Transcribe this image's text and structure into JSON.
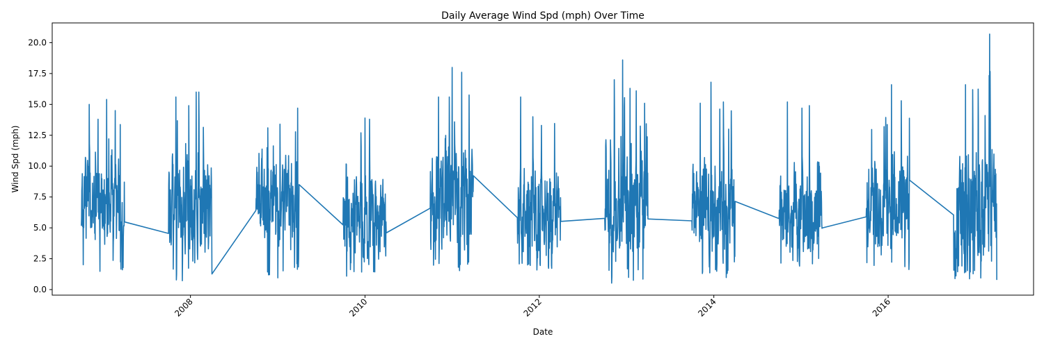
{
  "chart_data": {
    "type": "line",
    "title": "Daily Average Wind Spd (mph) Over Time",
    "xlabel": "Date",
    "ylabel": "Wind Spd (mph)",
    "xlim": [
      "2006-06-01",
      "2017-09-01"
    ],
    "ylim": [
      -0.45,
      21.6
    ],
    "x_ticks": [
      "2008",
      "2010",
      "2012",
      "2014",
      "2016"
    ],
    "y_ticks": [
      "0.0",
      "2.5",
      "5.0",
      "7.5",
      "10.0",
      "12.5",
      "15.0",
      "17.5",
      "20.0"
    ],
    "grid": false,
    "legend": "none",
    "colors": {
      "series": "#1f77b4",
      "axes": "#000000",
      "background": "#ffffff"
    },
    "series": [
      {
        "seasons": [
          {
            "start": "2006-10-01",
            "end": "2007-03-31",
            "min": 1.2,
            "max": 15.4,
            "mean": 7.0,
            "seed": 1,
            "peaks": [
              [
                "2006-11-03",
                15.0
              ],
              [
                "2007-01-15",
                15.4
              ],
              [
                "2007-02-20",
                14.5
              ],
              [
                "2006-12-10",
                13.8
              ]
            ]
          },
          {
            "start": "2007-10-01",
            "end": "2008-03-31",
            "min": 0.6,
            "max": 16.0,
            "mean": 6.5,
            "seed": 2,
            "peaks": [
              [
                "2007-11-01",
                15.6
              ],
              [
                "2008-01-25",
                16.0
              ],
              [
                "2008-02-05",
                16.0
              ],
              [
                "2007-12-25",
                14.9
              ]
            ]
          },
          {
            "start": "2008-10-01",
            "end": "2009-03-31",
            "min": 0.9,
            "max": 14.7,
            "mean": 6.8,
            "seed": 3,
            "peaks": [
              [
                "2008-11-20",
                13.1
              ],
              [
                "2009-01-10",
                13.4
              ],
              [
                "2009-03-25",
                14.7
              ]
            ]
          },
          {
            "start": "2009-10-01",
            "end": "2010-03-31",
            "min": 0.8,
            "max": 13.9,
            "mean": 5.6,
            "seed": 4,
            "peaks": [
              [
                "2010-01-01",
                13.9
              ],
              [
                "2010-01-20",
                13.8
              ],
              [
                "2009-12-15",
                12.7
              ]
            ]
          },
          {
            "start": "2010-10-01",
            "end": "2011-03-31",
            "min": 1.1,
            "max": 18.0,
            "mean": 7.2,
            "seed": 5,
            "peaks": [
              [
                "2010-11-05",
                15.6
              ],
              [
                "2010-12-20",
                15.6
              ],
              [
                "2011-01-01",
                18.0
              ],
              [
                "2011-02-10",
                17.6
              ]
            ]
          },
          {
            "start": "2011-10-01",
            "end": "2012-03-31",
            "min": 0.9,
            "max": 15.6,
            "mean": 6.3,
            "seed": 6,
            "peaks": [
              [
                "2011-10-15",
                15.6
              ],
              [
                "2011-12-05",
                14.0
              ],
              [
                "2012-01-10",
                13.3
              ]
            ]
          },
          {
            "start": "2012-10-01",
            "end": "2013-03-31",
            "min": 0.5,
            "max": 18.6,
            "mean": 6.4,
            "seed": 7,
            "peaks": [
              [
                "2012-11-10",
                17.0
              ],
              [
                "2012-12-15",
                18.6
              ],
              [
                "2013-01-15",
                16.3
              ],
              [
                "2013-02-10",
                16.1
              ]
            ]
          },
          {
            "start": "2013-10-01",
            "end": "2014-03-31",
            "min": 0.8,
            "max": 16.8,
            "mean": 6.1,
            "seed": 8,
            "peaks": [
              [
                "2013-11-05",
                15.1
              ],
              [
                "2013-12-20",
                16.8
              ],
              [
                "2014-02-10",
                15.2
              ]
            ]
          },
          {
            "start": "2014-10-01",
            "end": "2015-03-31",
            "min": 1.9,
            "max": 15.2,
            "mean": 6.2,
            "seed": 9,
            "peaks": [
              [
                "2014-11-05",
                15.2
              ],
              [
                "2015-01-05",
                14.7
              ],
              [
                "2015-02-05",
                14.9
              ]
            ]
          },
          {
            "start": "2015-10-01",
            "end": "2016-03-31",
            "min": 1.1,
            "max": 16.6,
            "mean": 6.4,
            "seed": 10,
            "peaks": [
              [
                "2015-12-15",
                13.2
              ],
              [
                "2016-01-15",
                16.6
              ],
              [
                "2016-02-25",
                15.3
              ]
            ]
          },
          {
            "start": "2016-10-01",
            "end": "2017-03-31",
            "min": 0.6,
            "max": 20.7,
            "mean": 6.6,
            "seed": 11,
            "peaks": [
              [
                "2016-11-20",
                16.6
              ],
              [
                "2016-12-20",
                16.2
              ],
              [
                "2017-03-01",
                20.7
              ],
              [
                "2017-02-10",
                14.1
              ]
            ]
          }
        ]
      }
    ]
  }
}
